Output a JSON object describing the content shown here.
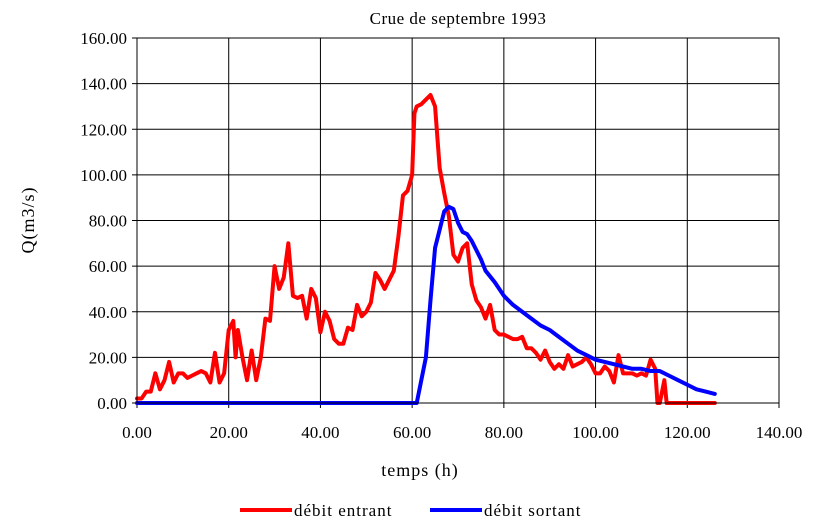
{
  "chart_data": {
    "type": "line",
    "title": "Crue de septembre 1993",
    "xlabel": "temps (h)",
    "ylabel": "Q(m3/s)",
    "xlim": [
      0,
      140
    ],
    "ylim": [
      0,
      160
    ],
    "xticks": [
      {
        "value": 0,
        "label": "0.00"
      },
      {
        "value": 20,
        "label": "20.00"
      },
      {
        "value": 40,
        "label": "40.00"
      },
      {
        "value": 60,
        "label": "60.00"
      },
      {
        "value": 80,
        "label": "80.00"
      },
      {
        "value": 100,
        "label": "100.00"
      },
      {
        "value": 120,
        "label": "120.00"
      },
      {
        "value": 140,
        "label": "140.00"
      }
    ],
    "yticks": [
      {
        "value": 0,
        "label": "0.00"
      },
      {
        "value": 20,
        "label": "20.00"
      },
      {
        "value": 40,
        "label": "40.00"
      },
      {
        "value": 60,
        "label": "60.00"
      },
      {
        "value": 80,
        "label": "80.00"
      },
      {
        "value": 100,
        "label": "100.00"
      },
      {
        "value": 120,
        "label": "120.00"
      },
      {
        "value": 140,
        "label": "140.00"
      },
      {
        "value": 160,
        "label": "160.00"
      }
    ],
    "grid": true,
    "legend": "bottom",
    "series": [
      {
        "name": "débit entrant",
        "color": "#ff0000",
        "x": [
          0,
          1,
          2,
          3,
          4,
          5,
          6,
          7,
          8,
          9,
          10,
          11,
          12,
          13,
          14,
          15,
          16,
          17,
          18,
          19,
          20,
          21,
          21.5,
          22,
          23,
          24,
          25,
          26,
          27,
          28,
          29,
          30,
          31,
          32,
          33,
          34,
          35,
          36,
          37,
          38,
          39,
          40,
          41,
          42,
          43,
          44,
          45,
          46,
          47,
          48,
          49,
          50,
          51,
          52,
          53,
          54,
          55,
          56,
          57,
          58,
          59,
          60,
          60.5,
          61,
          62,
          63,
          64,
          65,
          66,
          67,
          68,
          69,
          70,
          71,
          72,
          73,
          74,
          75,
          76,
          77,
          78,
          79,
          80,
          81,
          82,
          83,
          84,
          85,
          86,
          87,
          88,
          89,
          90,
          91,
          92,
          93,
          94,
          95,
          96,
          97,
          98,
          99,
          100,
          101,
          102,
          103,
          104,
          105,
          106,
          107,
          108,
          109,
          110,
          111,
          112,
          113,
          113.5,
          114,
          115,
          115.5,
          126
        ],
        "values": [
          2,
          2,
          5,
          5,
          13,
          6,
          10,
          18,
          9,
          13,
          13,
          11,
          12,
          13,
          14,
          13,
          9,
          22,
          9,
          13,
          32,
          36,
          20,
          32,
          20,
          10,
          23,
          10,
          20,
          37,
          36,
          60,
          50,
          55,
          70,
          47,
          46,
          47,
          37,
          50,
          46,
          31,
          40,
          36,
          28,
          26,
          26,
          33,
          32,
          43,
          38,
          40,
          44,
          57,
          54,
          50,
          54,
          58,
          73,
          91,
          93,
          100,
          127,
          130,
          131,
          133,
          135,
          130,
          103,
          92,
          82,
          65,
          62,
          68,
          70,
          52,
          45,
          42,
          37,
          43,
          32,
          30,
          30,
          29,
          28,
          28,
          29,
          24,
          24,
          22,
          19,
          23,
          18,
          15,
          17,
          15,
          21,
          16,
          17,
          18,
          20,
          17,
          13,
          13,
          16,
          14,
          9,
          21,
          13,
          13,
          13,
          12,
          13,
          12,
          19,
          15,
          0,
          0,
          10,
          0,
          0
        ]
      },
      {
        "name": "débit sortant",
        "color": "#0000ff",
        "x": [
          0,
          61,
          62,
          63,
          64,
          65,
          66,
          67,
          68,
          69,
          70,
          71,
          72,
          73,
          74,
          75,
          76,
          78,
          80,
          82,
          84,
          86,
          88,
          90,
          92,
          94,
          96,
          98,
          100,
          102,
          104,
          106,
          108,
          110,
          112,
          114,
          116,
          118,
          120,
          122,
          124,
          126
        ],
        "values": [
          0,
          0,
          10,
          20,
          45,
          68,
          76,
          84,
          86,
          85,
          79,
          75,
          74,
          71,
          67,
          63,
          58,
          53,
          47,
          43,
          40,
          37,
          34,
          32,
          29,
          26,
          23,
          21,
          19,
          18,
          17,
          16,
          15,
          15,
          14,
          14,
          12,
          10,
          8,
          6,
          5,
          4
        ]
      }
    ]
  }
}
